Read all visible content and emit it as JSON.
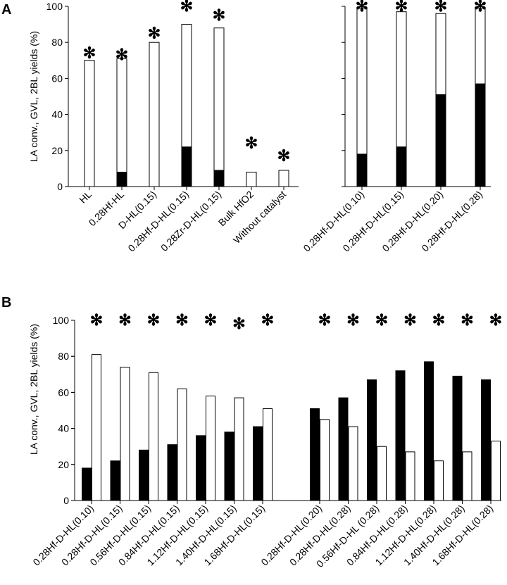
{
  "chart_data": [
    {
      "type": "bar",
      "panel": "A",
      "ylabel": "LA conv., GVL, 2BL yields (%)",
      "ylim": [
        0,
        100
      ],
      "yticks": [
        0,
        20,
        40,
        60,
        80,
        100
      ],
      "groups": [
        {
          "categories": [
            "HL",
            "0.28Hf-HL",
            "D-HL(0.15)",
            "0.28Hf-D-HL(0.15)",
            "0.28Zr-D-HL(0.15)",
            "Bulk HfO2",
            "Without catalyst"
          ],
          "series": [
            {
              "name": "GVL yield",
              "color": "#000000",
              "values": [
                0,
                8,
                0,
                22,
                9,
                0,
                0
              ]
            },
            {
              "name": "2BL yield",
              "color": "#ffffff",
              "values": [
                70,
                63,
                80,
                68,
                79,
                8,
                9
              ]
            },
            {
              "name": "LA conversion",
              "marker": "✻",
              "values": [
                74,
                73,
                85,
                100,
                95,
                24,
                17
              ]
            }
          ]
        },
        {
          "categories": [
            "0.28Hf-D-HL(0.10)",
            "0.28Hf-D-HL(0.15)",
            "0.28Hf-D-HL(0.20)",
            "0.28Hf-D-HL(0.28)"
          ],
          "series": [
            {
              "name": "GVL yield",
              "color": "#000000",
              "values": [
                18,
                22,
                51,
                57
              ]
            },
            {
              "name": "2BL yield",
              "color": "#ffffff",
              "values": [
                81,
                75,
                45,
                42
              ]
            },
            {
              "name": "LA conversion",
              "marker": "✻",
              "values": [
                100,
                100,
                100,
                100
              ]
            }
          ]
        }
      ]
    },
    {
      "type": "bar",
      "panel": "B",
      "ylabel": "LA conv., GVL, 2BL yields (%)",
      "ylim": [
        0,
        100
      ],
      "yticks": [
        0,
        20,
        40,
        60,
        80,
        100
      ],
      "groups": [
        {
          "categories": [
            "0.28Hf-D-HL(0.10)",
            "0.28Hf-D-HL(0.15)",
            "0.56Hf-D-HL(0.15)",
            "0.84Hf-D-HL(0.15)",
            "1.12Hf-D-HL(0.15)",
            "1.40Hf-D-HL(0.15)",
            "1.68Hf-D-HL(0.15)"
          ],
          "series": [
            {
              "name": "GVL yield",
              "color": "#000000",
              "values": [
                18,
                22,
                28,
                31,
                36,
                38,
                41
              ]
            },
            {
              "name": "2BL yield",
              "color": "#ffffff",
              "values": [
                81,
                74,
                71,
                62,
                58,
                57,
                51
              ]
            },
            {
              "name": "LA conversion",
              "marker": "✻",
              "values": [
                100,
                100,
                100,
                100,
                100,
                98,
                100
              ]
            }
          ]
        },
        {
          "categories": [
            "0.28Hf-D-HL(0.20)",
            "0.28Hf-D-HL(0.28)",
            "0.56Hf-D-HL (0.28)",
            "0.84Hf-D-HL(0.28)",
            "1.12Hf-D-HL(0.28)",
            "1.40Hf-D-HL(0.28)",
            "1.68Hf-D-HL(0.28)"
          ],
          "series": [
            {
              "name": "GVL yield",
              "color": "#000000",
              "values": [
                51,
                57,
                67,
                72,
                77,
                69,
                67
              ]
            },
            {
              "name": "2BL yield",
              "color": "#ffffff",
              "values": [
                45,
                41,
                30,
                27,
                22,
                27,
                33
              ]
            },
            {
              "name": "LA conversion",
              "marker": "✻",
              "values": [
                100,
                100,
                100,
                100,
                100,
                100,
                100
              ]
            }
          ]
        }
      ]
    }
  ]
}
